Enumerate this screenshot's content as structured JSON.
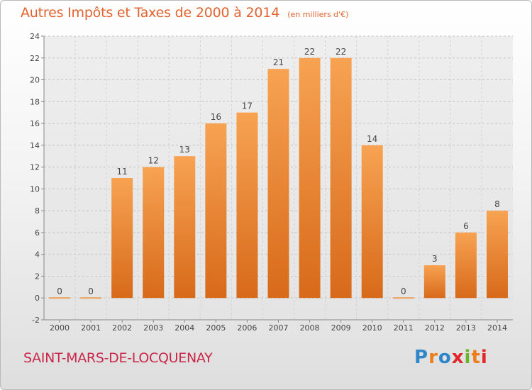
{
  "chart_data": {
    "type": "bar",
    "title": "Autres Impôts et Taxes de 2000 à 2014",
    "unit_note": "(en milliers d'€)",
    "categories": [
      "2000",
      "2001",
      "2002",
      "2003",
      "2004",
      "2005",
      "2006",
      "2007",
      "2008",
      "2009",
      "2010",
      "2011",
      "2012",
      "2013",
      "2014"
    ],
    "values": [
      0,
      0,
      11,
      12,
      13,
      16,
      17,
      21,
      22,
      22,
      14,
      0,
      3,
      6,
      8
    ],
    "ylim": [
      -2,
      24
    ],
    "yticks": [
      -2,
      0,
      2,
      4,
      6,
      8,
      10,
      12,
      14,
      16,
      18,
      20,
      22,
      24
    ],
    "grid": "dashed horizontal",
    "bar_color_top": "#f7a352",
    "bar_color_bottom": "#d76a1a",
    "zero_bar_color": "#eba05d"
  },
  "footer": {
    "place": "SAINT-MARS-DE-LOCQUENAY",
    "logo": [
      "P",
      "r",
      "o",
      "x",
      "i",
      "t",
      "i"
    ]
  },
  "colors": {
    "title": "#e2632f",
    "place": "#c8284a"
  }
}
